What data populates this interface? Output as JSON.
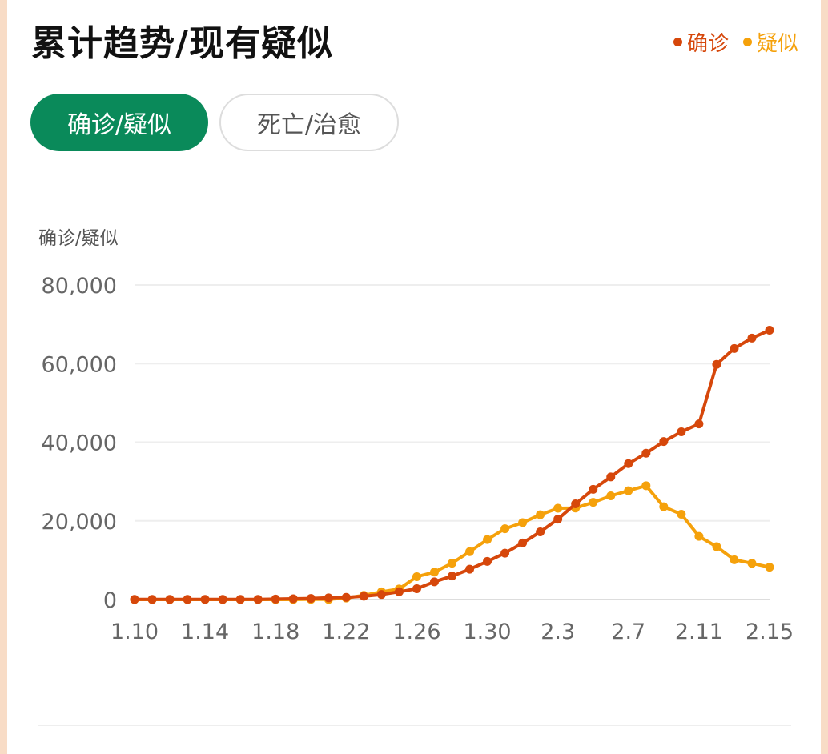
{
  "header": {
    "title": "累计趋势/现有疑似"
  },
  "legend": [
    {
      "label": "确诊",
      "color": "#d6470b"
    },
    {
      "label": "疑似",
      "color": "#f5a10b"
    }
  ],
  "tabs": [
    {
      "label": "确诊/疑似",
      "active": true
    },
    {
      "label": "死亡/治愈",
      "active": false
    }
  ],
  "chart_data": {
    "type": "line",
    "ylabel": "确诊/疑似",
    "ylim": [
      0,
      80000
    ],
    "y_ticks": [
      "0",
      "20,000",
      "40,000",
      "60,000",
      "80,000"
    ],
    "y_tick_values": [
      0,
      20000,
      40000,
      60000,
      80000
    ],
    "x_tick_labels": [
      "1.10",
      "1.14",
      "1.18",
      "1.22",
      "1.26",
      "1.30",
      "2.3",
      "2.7",
      "2.11",
      "2.15"
    ],
    "x_tick_indices": [
      0,
      4,
      8,
      12,
      16,
      20,
      24,
      28,
      32,
      36
    ],
    "x": [
      "1.10",
      "1.11",
      "1.12",
      "1.13",
      "1.14",
      "1.15",
      "1.16",
      "1.17",
      "1.18",
      "1.19",
      "1.20",
      "1.21",
      "1.22",
      "1.23",
      "1.24",
      "1.25",
      "1.26",
      "1.27",
      "1.28",
      "1.29",
      "1.30",
      "1.31",
      "2.1",
      "2.2",
      "2.3",
      "2.4",
      "2.5",
      "2.6",
      "2.7",
      "2.8",
      "2.9",
      "2.10",
      "2.11",
      "2.12",
      "2.13",
      "2.14",
      "2.15"
    ],
    "grid": true,
    "series": [
      {
        "name": "确诊",
        "color": "#d6470b",
        "values": [
          41,
          41,
          41,
          41,
          41,
          41,
          45,
          62,
          121,
          198,
          291,
          440,
          571,
          830,
          1287,
          1975,
          2744,
          4515,
          5974,
          7711,
          9692,
          11791,
          14380,
          17205,
          20438,
          24324,
          28018,
          31161,
          34546,
          37198,
          40171,
          42638,
          44653,
          59804,
          63851,
          66492,
          68500
        ]
      },
      {
        "name": "疑似",
        "color": "#f5a10b",
        "values": [
          0,
          0,
          0,
          0,
          0,
          0,
          0,
          0,
          0,
          0,
          54,
          37,
          393,
          1072,
          1965,
          2684,
          5794,
          6973,
          9239,
          12167,
          15238,
          17988,
          19544,
          21558,
          23214,
          23260,
          24702,
          26359,
          27657,
          28942,
          23589,
          21675,
          16067,
          13435,
          10109,
          9200,
          8228
        ]
      }
    ]
  }
}
